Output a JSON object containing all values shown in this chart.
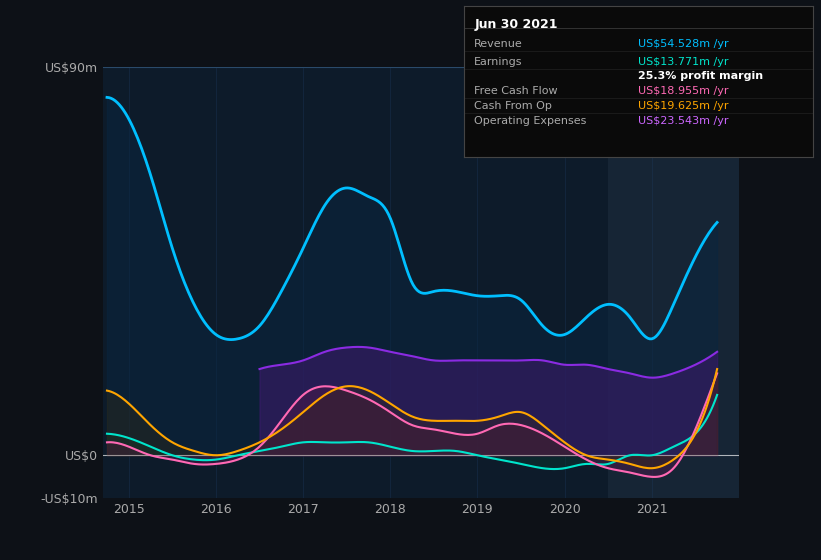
{
  "bg_color": "#0d1117",
  "plot_bg_color": "#0d1b2a",
  "grid_color": "#1e3a5f",
  "ylabel": "US$90m",
  "ylabel_zero": "US$0",
  "ylabel_neg": "-US$10m",
  "ylim": [
    -10,
    90
  ],
  "xlim": [
    2014.7,
    2022.0
  ],
  "xticks": [
    2015,
    2016,
    2017,
    2018,
    2019,
    2020,
    2021
  ],
  "highlight_start": 2020.5,
  "highlight_end": 2022.0,
  "highlight_color": "#1a2a3a",
  "revenue_color": "#00bfff",
  "revenue_fill": "#0a3050",
  "earnings_color": "#00e5cc",
  "earnings_fill": "#0a3a30",
  "fcf_color": "#ff69b4",
  "fcf_fill": "#4a1a3a",
  "cashfromop_color": "#ffa500",
  "cashfromop_fill": "#3a2a0a",
  "opex_color": "#8a2be2",
  "opex_fill": "#2a1050",
  "tooltip_bg": "#0a0a0a",
  "tooltip_border": "#333333",
  "revenue": {
    "x": [
      2014.75,
      2015.0,
      2015.25,
      2015.5,
      2015.75,
      2016.0,
      2016.25,
      2016.5,
      2016.75,
      2017.0,
      2017.25,
      2017.5,
      2017.75,
      2018.0,
      2018.25,
      2018.5,
      2018.75,
      2019.0,
      2019.25,
      2019.5,
      2019.75,
      2020.0,
      2020.25,
      2020.5,
      2020.75,
      2021.0,
      2021.25,
      2021.5,
      2021.75
    ],
    "y": [
      83,
      78,
      65,
      48,
      35,
      28,
      27,
      30,
      38,
      48,
      58,
      62,
      60,
      55,
      40,
      38,
      38,
      37,
      37,
      36,
      30,
      28,
      32,
      35,
      32,
      27,
      35,
      46,
      54
    ]
  },
  "earnings": {
    "x": [
      2014.75,
      2015.0,
      2015.25,
      2015.5,
      2015.75,
      2016.0,
      2016.25,
      2016.5,
      2016.75,
      2017.0,
      2017.25,
      2017.5,
      2017.75,
      2018.0,
      2018.25,
      2018.5,
      2018.75,
      2019.0,
      2019.25,
      2019.5,
      2019.75,
      2020.0,
      2020.25,
      2020.5,
      2020.75,
      2021.0,
      2021.25,
      2021.5,
      2021.75
    ],
    "y": [
      5,
      4,
      2,
      0,
      -1,
      -1,
      0,
      1,
      2,
      3,
      3,
      3,
      3,
      2,
      1,
      1,
      1,
      0,
      -1,
      -2,
      -3,
      -3,
      -2,
      -2,
      0,
      0,
      2,
      5,
      14
    ]
  },
  "fcf": {
    "x": [
      2014.75,
      2015.0,
      2015.25,
      2015.5,
      2015.75,
      2016.0,
      2016.25,
      2016.5,
      2016.75,
      2017.0,
      2017.25,
      2017.5,
      2017.75,
      2018.0,
      2018.25,
      2018.5,
      2018.75,
      2019.0,
      2019.25,
      2019.5,
      2019.75,
      2020.0,
      2020.25,
      2020.5,
      2020.75,
      2021.0,
      2021.25,
      2021.5,
      2021.75
    ],
    "y": [
      3,
      2,
      0,
      -1,
      -2,
      -2,
      -1,
      2,
      8,
      14,
      16,
      15,
      13,
      10,
      7,
      6,
      5,
      5,
      7,
      7,
      5,
      2,
      -1,
      -3,
      -4,
      -5,
      -3,
      6,
      19
    ]
  },
  "cashfromop": {
    "x": [
      2014.75,
      2015.0,
      2015.25,
      2015.5,
      2015.75,
      2016.0,
      2016.25,
      2016.5,
      2016.75,
      2017.0,
      2017.25,
      2017.5,
      2017.75,
      2018.0,
      2018.25,
      2018.5,
      2018.75,
      2019.0,
      2019.25,
      2019.5,
      2019.75,
      2020.0,
      2020.25,
      2020.5,
      2020.75,
      2021.0,
      2021.25,
      2021.5,
      2021.75
    ],
    "y": [
      15,
      12,
      7,
      3,
      1,
      0,
      1,
      3,
      6,
      10,
      14,
      16,
      15,
      12,
      9,
      8,
      8,
      8,
      9,
      10,
      7,
      3,
      0,
      -1,
      -2,
      -3,
      -1,
      5,
      20
    ]
  },
  "opex": {
    "x": [
      2016.5,
      2016.75,
      2017.0,
      2017.25,
      2017.5,
      2017.75,
      2018.0,
      2018.25,
      2018.5,
      2018.75,
      2019.0,
      2019.25,
      2019.5,
      2019.75,
      2020.0,
      2020.25,
      2020.5,
      2020.75,
      2021.0,
      2021.25,
      2021.5,
      2021.75
    ],
    "y": [
      20,
      21,
      22,
      24,
      25,
      25,
      24,
      23,
      22,
      22,
      22,
      22,
      22,
      22,
      21,
      21,
      20,
      19,
      18,
      19,
      21,
      24
    ]
  },
  "legend_items": [
    {
      "label": "Revenue",
      "color": "#00bfff"
    },
    {
      "label": "Earnings",
      "color": "#00e5cc"
    },
    {
      "label": "Free Cash Flow",
      "color": "#ff69b4"
    },
    {
      "label": "Cash From Op",
      "color": "#ffa500"
    },
    {
      "label": "Operating Expenses",
      "color": "#8a2be2"
    }
  ],
  "tooltip": {
    "date": "Jun 30 2021",
    "rows": [
      {
        "label": "Revenue",
        "value": "US$54.528m /yr",
        "value_color": "#00bfff"
      },
      {
        "label": "Earnings",
        "value": "US$13.771m /yr",
        "value_color": "#00e5cc"
      },
      {
        "label": "",
        "value": "25.3% profit margin",
        "value_color": "#ffffff",
        "bold": true
      },
      {
        "label": "Free Cash Flow",
        "value": "US$18.955m /yr",
        "value_color": "#ff69b4"
      },
      {
        "label": "Cash From Op",
        "value": "US$19.625m /yr",
        "value_color": "#ffa500"
      },
      {
        "label": "Operating Expenses",
        "value": "US$23.543m /yr",
        "value_color": "#cc66ff"
      }
    ]
  }
}
